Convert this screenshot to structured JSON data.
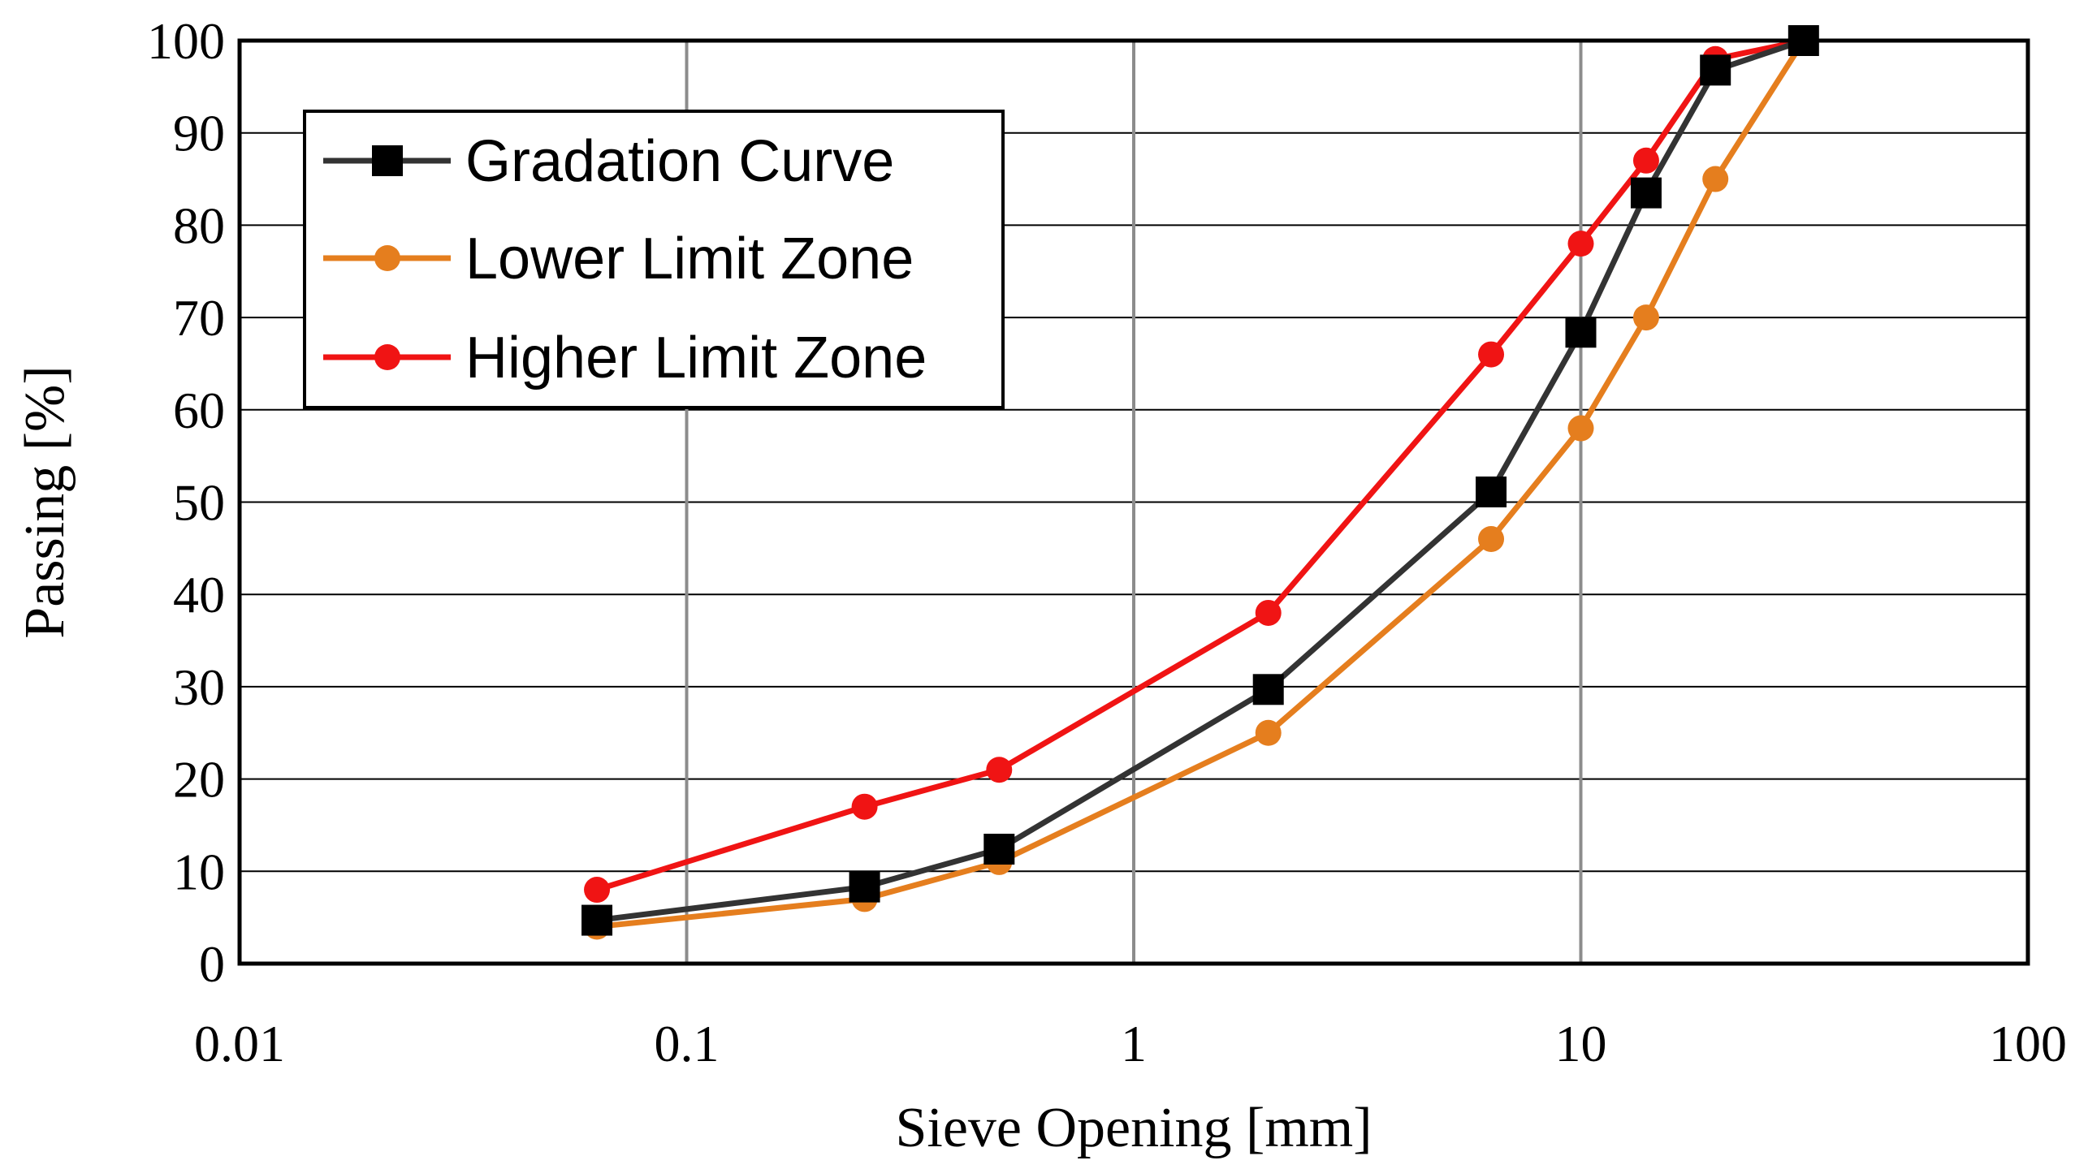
{
  "chart_data": {
    "type": "line",
    "title": "",
    "xlabel": "Sieve Opening [mm]",
    "ylabel": "Passing [%]",
    "xscale": "log",
    "xlim": [
      0.01,
      100
    ],
    "ylim": [
      0,
      100
    ],
    "x_ticks": [
      0.01,
      0.1,
      1,
      10,
      100
    ],
    "x_tick_labels": [
      "0.01",
      "0.1",
      "1",
      "10",
      "100"
    ],
    "y_ticks": [
      0,
      10,
      20,
      30,
      40,
      50,
      60,
      70,
      80,
      90,
      100
    ],
    "y_tick_labels": [
      "0",
      "10",
      "20",
      "30",
      "40",
      "50",
      "60",
      "70",
      "80",
      "90",
      "100"
    ],
    "grid": true,
    "legend_position": "top-left",
    "series": [
      {
        "name": "Gradation Curve",
        "color": "#333333",
        "marker": "square",
        "x": [
          0.063,
          0.25,
          0.5,
          2,
          6.3,
          10,
          14,
          20,
          31.5
        ],
        "y": [
          4.7,
          8.3,
          12.4,
          29.7,
          51.1,
          68.4,
          83.5,
          96.8,
          100
        ]
      },
      {
        "name": "Lower Limit Zone",
        "color": "#e57e1e",
        "marker": "circle",
        "x": [
          0.063,
          0.25,
          0.5,
          2,
          6.3,
          10,
          14,
          20,
          31.5
        ],
        "y": [
          4,
          7,
          11,
          25,
          46,
          58,
          70,
          85,
          100
        ]
      },
      {
        "name": "Higher Limit Zone",
        "color": "#f01414",
        "marker": "circle",
        "x": [
          0.063,
          0.25,
          0.5,
          2,
          6.3,
          10,
          14,
          20,
          31.5
        ],
        "y": [
          8,
          17,
          21,
          38,
          66,
          78,
          87,
          98,
          100
        ]
      }
    ]
  }
}
